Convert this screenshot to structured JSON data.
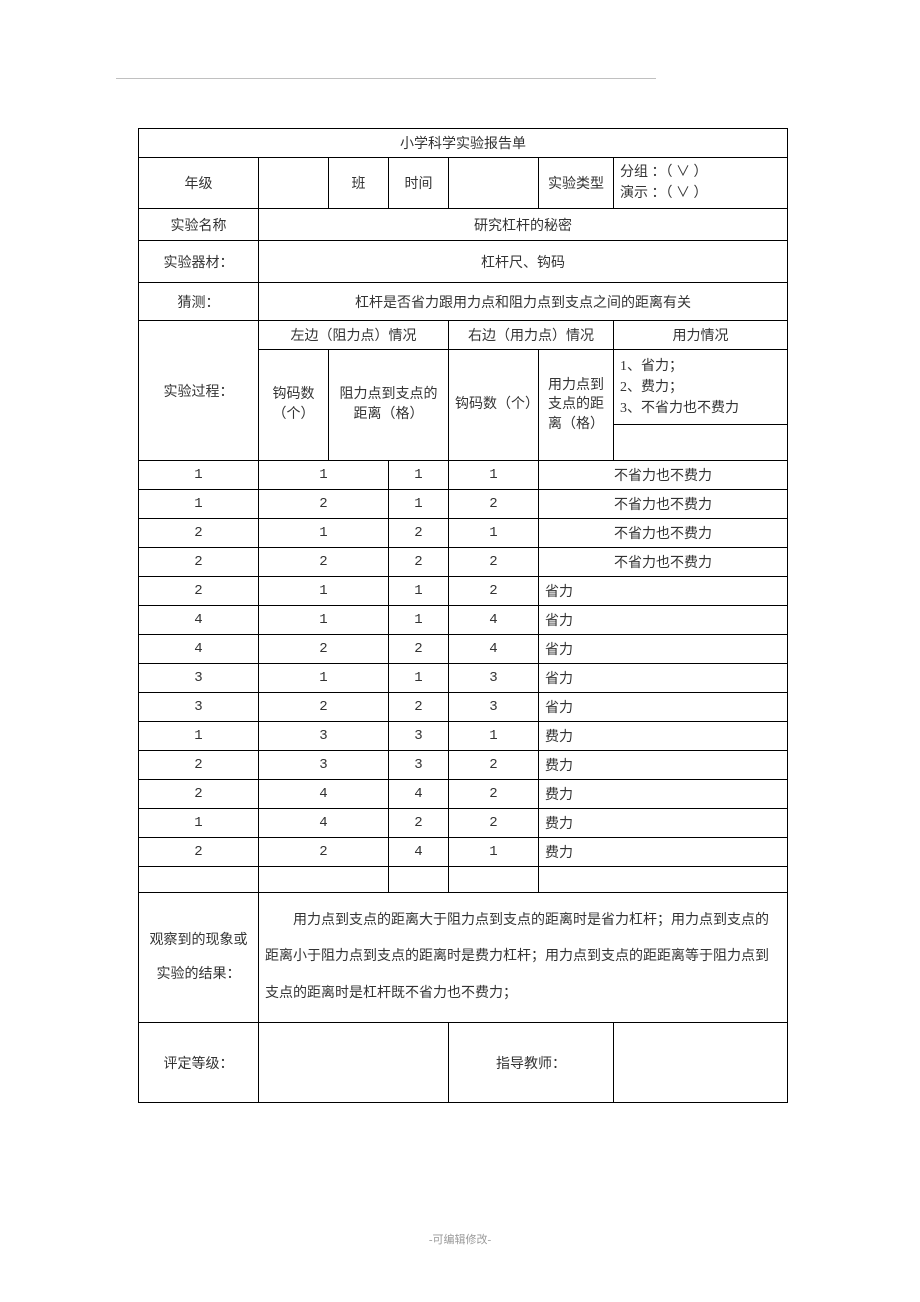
{
  "title": "小学科学实验报告单",
  "row1": {
    "grade_label": "年级",
    "class_label": "班",
    "time_label": "时间",
    "exp_type_label": "实验类型",
    "type_options": "分组 ：（ ∨ ）\n演示 ：（ ∨ ）"
  },
  "exp_name_label": "实验名称",
  "exp_name_value": "研究杠杆的秘密",
  "equipment_label": "实验器材：",
  "equipment_value": "杠杆尺、钩码",
  "guess_label": "猜测：",
  "guess_value": "杠杆是否省力跟用力点和阻力点到支点之间的距离有关",
  "process_label": "实验过程：",
  "process": {
    "left_header": "左边（阻力点）情况",
    "right_header": "右边（用力点）情况",
    "force_header": "用力情况",
    "legend": "1、省力；\n2、费力；\n3、不省力也不费力",
    "sub_headers": {
      "h1": "钩码数（个）",
      "h2": "阻力点到支点的距离（格）",
      "h3": "钩码数（个）",
      "h4": "用力点到支点的距离（格）"
    },
    "rows": [
      {
        "c1": "1",
        "c2": "1",
        "c3": "1",
        "c4": "1",
        "r": "不省力也不费力",
        "align": "center"
      },
      {
        "c1": "1",
        "c2": "2",
        "c3": "1",
        "c4": "2",
        "r": "不省力也不费力",
        "align": "center"
      },
      {
        "c1": "2",
        "c2": "1",
        "c3": "2",
        "c4": "1",
        "r": "不省力也不费力",
        "align": "center"
      },
      {
        "c1": "2",
        "c2": "2",
        "c3": "2",
        "c4": "2",
        "r": "不省力也不费力",
        "align": "center"
      },
      {
        "c1": "2",
        "c2": "1",
        "c3": "1",
        "c4": "2",
        "r": "省力",
        "align": "left"
      },
      {
        "c1": "4",
        "c2": "1",
        "c3": "1",
        "c4": "4",
        "r": "省力",
        "align": "left"
      },
      {
        "c1": "4",
        "c2": "2",
        "c3": "2",
        "c4": "4",
        "r": "省力",
        "align": "left"
      },
      {
        "c1": "3",
        "c2": "1",
        "c3": "1",
        "c4": "3",
        "r": "省力",
        "align": "left"
      },
      {
        "c1": "3",
        "c2": "2",
        "c3": "2",
        "c4": "3",
        "r": "省力",
        "align": "left"
      },
      {
        "c1": "1",
        "c2": "3",
        "c3": "3",
        "c4": "1",
        "r": "费力",
        "align": "left"
      },
      {
        "c1": "2",
        "c2": "3",
        "c3": "3",
        "c4": "2",
        "r": "费力",
        "align": "left"
      },
      {
        "c1": "2",
        "c2": "4",
        "c3": "4",
        "c4": "2",
        "r": "费力",
        "align": "left"
      },
      {
        "c1": "1",
        "c2": "4",
        "c3": "2",
        "c4": "2",
        "r": "费力",
        "align": "left"
      },
      {
        "c1": "2",
        "c2": "2",
        "c3": "4",
        "c4": "1",
        "r": "费力",
        "align": "left"
      }
    ]
  },
  "observation_label": "观察到的现象或实验的结果：",
  "observation_value": "用力点到支点的距离大于阻力点到支点的距离时是省力杠杆；用力点到支点的距离小于阻力点到支点的距离时是费力杠杆；用力点到支点的距距离等于阻力点到支点的距离时是杠杆既不省力也不费力；",
  "eval_label": "评定等级：",
  "teacher_label": "指导教师：",
  "footer": "-可编辑修改-"
}
